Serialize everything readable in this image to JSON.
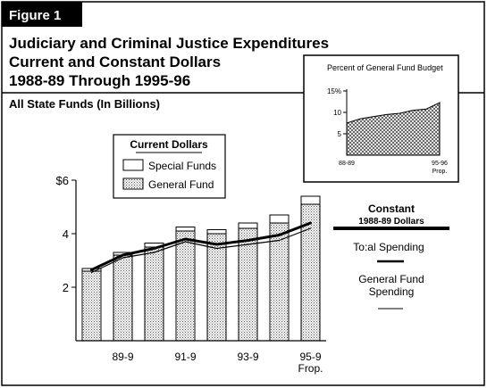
{
  "figure_label": "Figure 1",
  "title_lines": [
    "Judiciary and Criminal Justice Expenditures",
    "Current and Constant Dollars",
    "1988-89 Through 1995-96"
  ],
  "subtitle": "All State Funds (In Billions)",
  "colors": {
    "frame": "#000000",
    "background": "#ffffff",
    "stipple": "#555555"
  },
  "chart_data": [
    {
      "type": "bar",
      "stacked": true,
      "y_unit": "$",
      "ylim": [
        0,
        6
      ],
      "y_ticks": [
        {
          "value": 2,
          "label": "2"
        },
        {
          "value": 4,
          "label": "4"
        },
        {
          "value": 6,
          "label": "$6"
        }
      ],
      "x_tick_labels": [
        {
          "index": 1,
          "lines": [
            "89-9"
          ]
        },
        {
          "index": 3,
          "lines": [
            "91-9"
          ]
        },
        {
          "index": 5,
          "lines": [
            "93-9"
          ]
        },
        {
          "index": 7,
          "lines": [
            "95-9",
            "Frop."
          ]
        }
      ],
      "legend_title": "Current Dollars",
      "series": [
        {
          "name": "General Fund",
          "pattern": "stipple",
          "values": [
            2.6,
            3.2,
            3.5,
            4.1,
            4.0,
            4.2,
            4.4,
            5.1
          ]
        },
        {
          "name": "Special Funds",
          "pattern": "white",
          "values": [
            0.1,
            0.1,
            0.15,
            0.15,
            0.15,
            0.2,
            0.3,
            0.3
          ]
        }
      ],
      "constant_lines": {
        "legend_title_lines": [
          "Constant",
          "1988-89 Dollars"
        ],
        "series": [
          {
            "name_lines": [
              "To:al Spending"
            ],
            "style": "thick",
            "values": [
              2.65,
              3.2,
              3.45,
              3.8,
              3.6,
              3.75,
              3.95,
              4.4
            ]
          },
          {
            "name_lines": [
              "General Fund",
              "Spending"
            ],
            "style": "thin",
            "values": [
              2.55,
              3.1,
              3.3,
              3.7,
              3.45,
              3.6,
              3.75,
              4.2
            ]
          }
        ]
      },
      "grid": false,
      "legend_placement": "top-center"
    },
    {
      "type": "area",
      "title": "Percent of General Fund Budget",
      "ylim": [
        0,
        15
      ],
      "y_ticks": [
        {
          "value": 5,
          "label": "5"
        },
        {
          "value": 10,
          "label": "10"
        },
        {
          "value": 15,
          "label": "15%"
        }
      ],
      "x_tick_labels": [
        {
          "index": 0,
          "lines": [
            "88-89"
          ]
        },
        {
          "index": 7,
          "lines": [
            "95-96",
            "Prop."
          ]
        }
      ],
      "values": [
        7.5,
        8.5,
        9.0,
        9.5,
        9.8,
        10.5,
        10.8,
        12.3
      ]
    }
  ]
}
